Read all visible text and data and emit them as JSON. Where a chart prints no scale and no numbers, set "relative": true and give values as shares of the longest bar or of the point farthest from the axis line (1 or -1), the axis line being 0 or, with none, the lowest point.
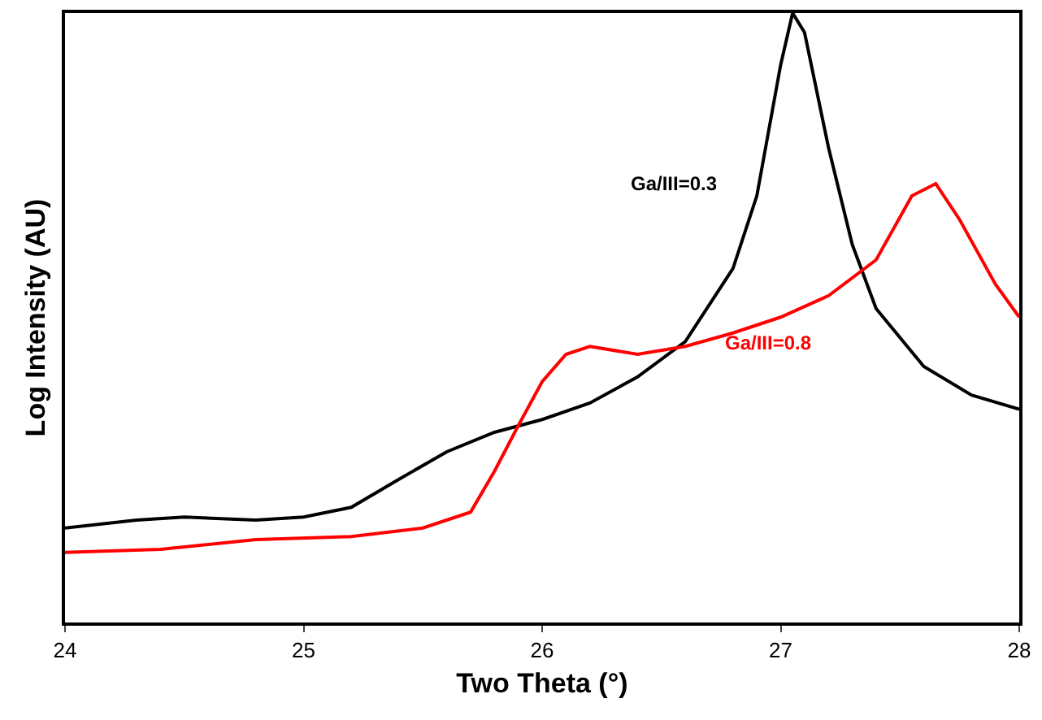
{
  "chart_data": {
    "type": "line",
    "relative": true,
    "xlabel": "Two Theta (°)",
    "ylabel": "Log Intensity (AU)",
    "xlim": [
      24,
      28
    ],
    "xticks": [
      24,
      25,
      26,
      27,
      28
    ],
    "marker": "none",
    "line_style": "solid",
    "legend": false,
    "series": [
      {
        "name": "Ga/III=0.3",
        "color": "#000000",
        "x": [
          24.0,
          24.3,
          24.5,
          24.8,
          25.0,
          25.2,
          25.4,
          25.6,
          25.8,
          26.0,
          26.2,
          26.4,
          26.6,
          26.8,
          26.9,
          27.0,
          27.05,
          27.1,
          27.2,
          27.3,
          27.4,
          27.6,
          27.8,
          28.0
        ],
        "values": [
          0.155,
          0.168,
          0.173,
          0.168,
          0.173,
          0.189,
          0.235,
          0.28,
          0.312,
          0.333,
          0.36,
          0.403,
          0.461,
          0.581,
          0.7,
          0.915,
          1,
          0.968,
          0.78,
          0.62,
          0.515,
          0.42,
          0.373,
          0.35
        ]
      },
      {
        "name": "Ga/III=0.8",
        "color": "#ff0000",
        "x": [
          24.0,
          24.4,
          24.8,
          25.2,
          25.5,
          25.7,
          25.8,
          25.9,
          26.0,
          26.1,
          26.2,
          26.4,
          26.6,
          26.8,
          27.0,
          27.2,
          27.4,
          27.55,
          27.65,
          27.75,
          27.9,
          28.0
        ],
        "values": [
          0.115,
          0.12,
          0.136,
          0.141,
          0.155,
          0.181,
          0.248,
          0.323,
          0.395,
          0.44,
          0.453,
          0.44,
          0.453,
          0.475,
          0.501,
          0.536,
          0.595,
          0.7,
          0.72,
          0.661,
          0.555,
          0.501
        ]
      }
    ]
  }
}
